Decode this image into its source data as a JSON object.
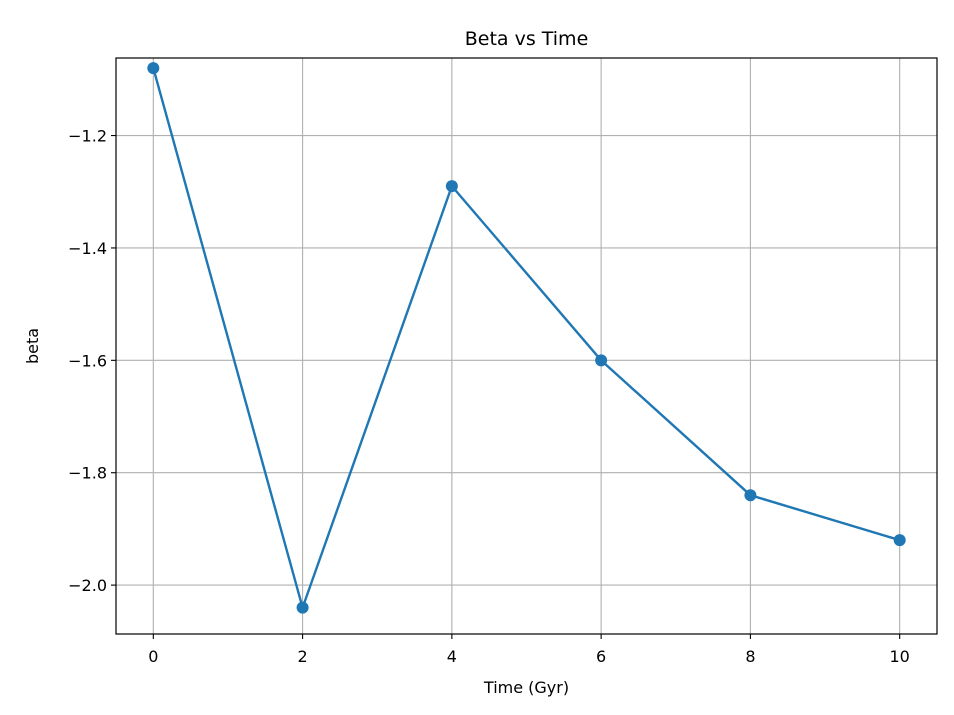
{
  "chart_data": {
    "type": "line",
    "title": "Beta vs Time",
    "xlabel": "Time (Gyr)",
    "ylabel": "beta",
    "xlim": [
      -0.5,
      10.5
    ],
    "ylim": [
      -2.087,
      -1.062
    ],
    "xticks": [
      0,
      2,
      4,
      6,
      8,
      10
    ],
    "yticks": [
      -2.0,
      -1.8,
      -1.6,
      -1.4,
      -1.2
    ],
    "grid": true,
    "legend": "none",
    "series": [
      {
        "color": "#1f77b4",
        "marker": "circle",
        "x": [
          0,
          2,
          4,
          6,
          8,
          10
        ],
        "y": [
          -1.08,
          -2.04,
          -1.29,
          -1.6,
          -1.84,
          -1.92
        ]
      }
    ]
  }
}
